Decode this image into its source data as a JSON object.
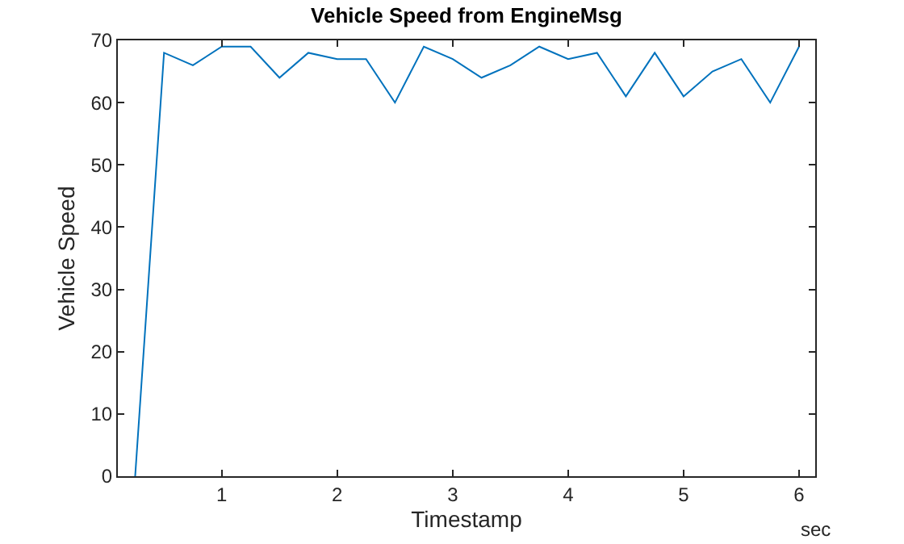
{
  "chart_data": {
    "type": "line",
    "title": "Vehicle Speed from EngineMsg",
    "xlabel": "Timestamp",
    "ylabel": "Vehicle Speed",
    "annotations": [
      "sec"
    ],
    "x": [
      0.25,
      0.5,
      0.75,
      1.0,
      1.25,
      1.5,
      1.75,
      2.0,
      2.25,
      2.5,
      2.75,
      3.0,
      3.25,
      3.5,
      3.75,
      4.0,
      4.25,
      4.5,
      4.75,
      5.0,
      5.25,
      5.5,
      5.75,
      6.0
    ],
    "series": [
      {
        "color": "#0072bd",
        "values": [
          0,
          68,
          66,
          69,
          69,
          64,
          68,
          67,
          67,
          60,
          69,
          67,
          64,
          66,
          69,
          67,
          68,
          61,
          68,
          61,
          65,
          67,
          60,
          69
        ]
      }
    ],
    "xlim": [
      0.1,
      6.14
    ],
    "xticks": [
      1,
      2,
      3,
      4,
      5,
      6
    ],
    "ylim": [
      0,
      70
    ],
    "yticks": [
      0,
      10,
      20,
      30,
      40,
      50,
      60,
      70
    ]
  }
}
